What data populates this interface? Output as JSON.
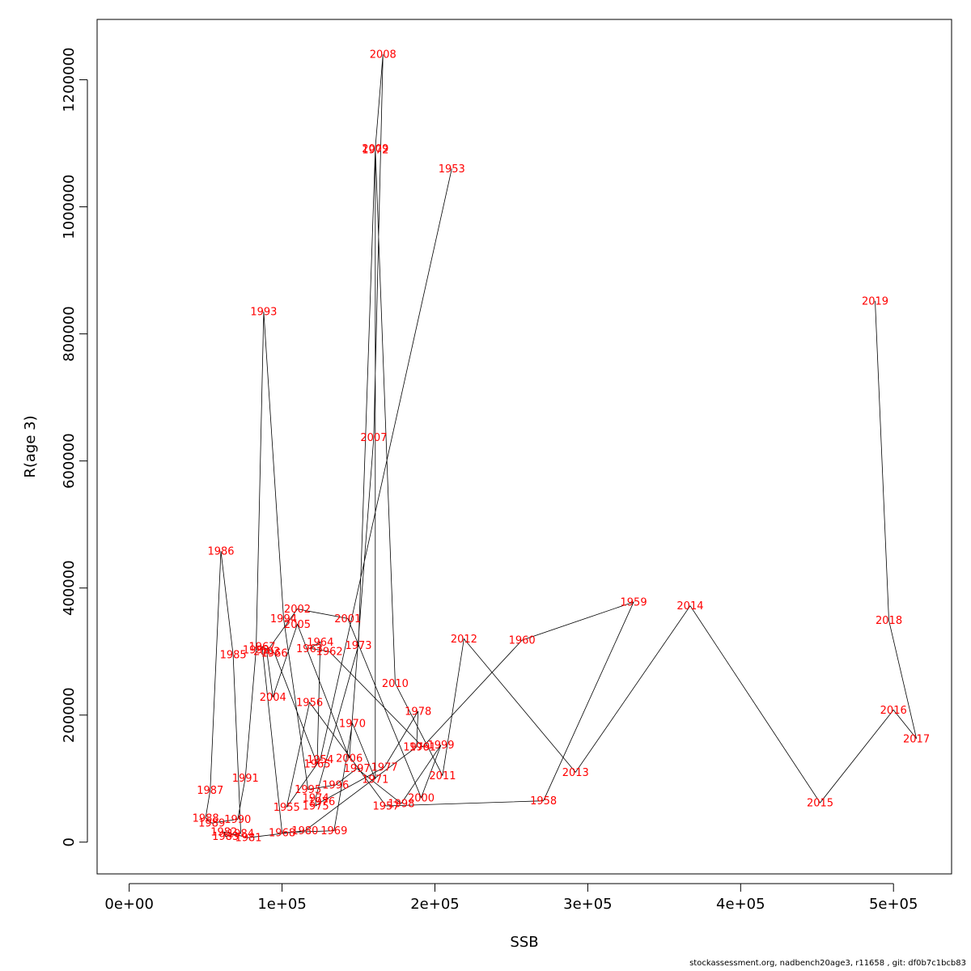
{
  "footer_text": "stockassessment.org, nadbench20age3, r11658 , git: df0b7c1bcb83",
  "chart_data": {
    "type": "scatter",
    "connected": true,
    "title": "",
    "xlabel": "SSB",
    "ylabel": "R(age 3)",
    "xlim": [
      -21000,
      538000
    ],
    "ylim": [
      -50000,
      1295000
    ],
    "xticks": [
      0,
      100000,
      200000,
      300000,
      400000,
      500000
    ],
    "xtick_labels": [
      "0e+00",
      "1e+05",
      "2e+05",
      "3e+05",
      "4e+05",
      "5e+05"
    ],
    "yticks": [
      0,
      200000,
      400000,
      600000,
      800000,
      1000000,
      1200000
    ],
    "ytick_labels": [
      "0",
      "200000",
      "400000",
      "600000",
      "800000",
      "1000000",
      "1200000"
    ],
    "line_color": "#000000",
    "label_color": "#ff0000",
    "points": [
      {
        "year": "1953",
        "ssb": 211000,
        "r": 1060000
      },
      {
        "year": "1954",
        "ssb": 125000,
        "r": 130000
      },
      {
        "year": "1955",
        "ssb": 103000,
        "r": 55000
      },
      {
        "year": "1956",
        "ssb": 118000,
        "r": 220000
      },
      {
        "year": "1957",
        "ssb": 168000,
        "r": 57000
      },
      {
        "year": "1958",
        "ssb": 271000,
        "r": 65000
      },
      {
        "year": "1959",
        "ssb": 330000,
        "r": 378000
      },
      {
        "year": "1960",
        "ssb": 257000,
        "r": 318000
      },
      {
        "year": "1961",
        "ssb": 192000,
        "r": 150000
      },
      {
        "year": "1962",
        "ssb": 131000,
        "r": 300000
      },
      {
        "year": "1963",
        "ssb": 118000,
        "r": 305000
      },
      {
        "year": "1964",
        "ssb": 125000,
        "r": 315000
      },
      {
        "year": "1965",
        "ssb": 123000,
        "r": 123000
      },
      {
        "year": "1966",
        "ssb": 95000,
        "r": 298000
      },
      {
        "year": "1967",
        "ssb": 87000,
        "r": 308000
      },
      {
        "year": "1968",
        "ssb": 100000,
        "r": 15000
      },
      {
        "year": "1969",
        "ssb": 134000,
        "r": 18000
      },
      {
        "year": "1970",
        "ssb": 146000,
        "r": 187000
      },
      {
        "year": "1971",
        "ssb": 161000,
        "r": 99000
      },
      {
        "year": "1972",
        "ssb": 161000,
        "r": 1090000
      },
      {
        "year": "1973",
        "ssb": 150000,
        "r": 310000
      },
      {
        "year": "1974",
        "ssb": 122000,
        "r": 70000
      },
      {
        "year": "1975",
        "ssb": 122000,
        "r": 57000
      },
      {
        "year": "1976",
        "ssb": 126000,
        "r": 64000
      },
      {
        "year": "1977",
        "ssb": 167000,
        "r": 118000
      },
      {
        "year": "1978",
        "ssb": 189000,
        "r": 206000
      },
      {
        "year": "1979",
        "ssb": 188000,
        "r": 150000
      },
      {
        "year": "1980",
        "ssb": 115000,
        "r": 18000
      },
      {
        "year": "1981",
        "ssb": 78000,
        "r": 7000
      },
      {
        "year": "1982",
        "ssb": 62000,
        "r": 16000
      },
      {
        "year": "1983",
        "ssb": 63000,
        "r": 9000
      },
      {
        "year": "1984",
        "ssb": 73000,
        "r": 14000
      },
      {
        "year": "1985",
        "ssb": 68000,
        "r": 295000
      },
      {
        "year": "1986",
        "ssb": 60000,
        "r": 458000
      },
      {
        "year": "1987",
        "ssb": 53000,
        "r": 82000
      },
      {
        "year": "1988",
        "ssb": 50000,
        "r": 38000
      },
      {
        "year": "1989",
        "ssb": 54000,
        "r": 30000
      },
      {
        "year": "1990",
        "ssb": 71000,
        "r": 36000
      },
      {
        "year": "1991",
        "ssb": 76000,
        "r": 101000
      },
      {
        "year": "1992",
        "ssb": 83000,
        "r": 303000
      },
      {
        "year": "1993",
        "ssb": 88000,
        "r": 835000
      },
      {
        "year": "1994",
        "ssb": 101000,
        "r": 352000
      },
      {
        "year": "1995",
        "ssb": 117000,
        "r": 83000
      },
      {
        "year": "1996",
        "ssb": 135000,
        "r": 90000
      },
      {
        "year": "1997",
        "ssb": 149000,
        "r": 116000
      },
      {
        "year": "1998",
        "ssb": 178000,
        "r": 61000
      },
      {
        "year": "1999",
        "ssb": 204000,
        "r": 153000
      },
      {
        "year": "2000",
        "ssb": 191000,
        "r": 70000
      },
      {
        "year": "2001",
        "ssb": 143000,
        "r": 352000
      },
      {
        "year": "2002",
        "ssb": 110000,
        "r": 367000
      },
      {
        "year": "2003",
        "ssb": 90000,
        "r": 300000
      },
      {
        "year": "2004",
        "ssb": 94000,
        "r": 228000
      },
      {
        "year": "2005",
        "ssb": 110000,
        "r": 343000
      },
      {
        "year": "2006",
        "ssb": 144000,
        "r": 132000
      },
      {
        "year": "2007",
        "ssb": 160000,
        "r": 637000
      },
      {
        "year": "2008",
        "ssb": 166000,
        "r": 1240000
      },
      {
        "year": "2009",
        "ssb": 161000,
        "r": 1092000
      },
      {
        "year": "2010",
        "ssb": 174000,
        "r": 250000
      },
      {
        "year": "2011",
        "ssb": 205000,
        "r": 105000
      },
      {
        "year": "2012",
        "ssb": 219000,
        "r": 320000
      },
      {
        "year": "2013",
        "ssb": 292000,
        "r": 110000
      },
      {
        "year": "2014",
        "ssb": 367000,
        "r": 372000
      },
      {
        "year": "2015",
        "ssb": 452000,
        "r": 62000
      },
      {
        "year": "2016",
        "ssb": 500000,
        "r": 208000
      },
      {
        "year": "2017",
        "ssb": 515000,
        "r": 163000
      },
      {
        "year": "2018",
        "ssb": 497000,
        "r": 349000
      },
      {
        "year": "2019",
        "ssb": 488000,
        "r": 852000
      }
    ]
  }
}
